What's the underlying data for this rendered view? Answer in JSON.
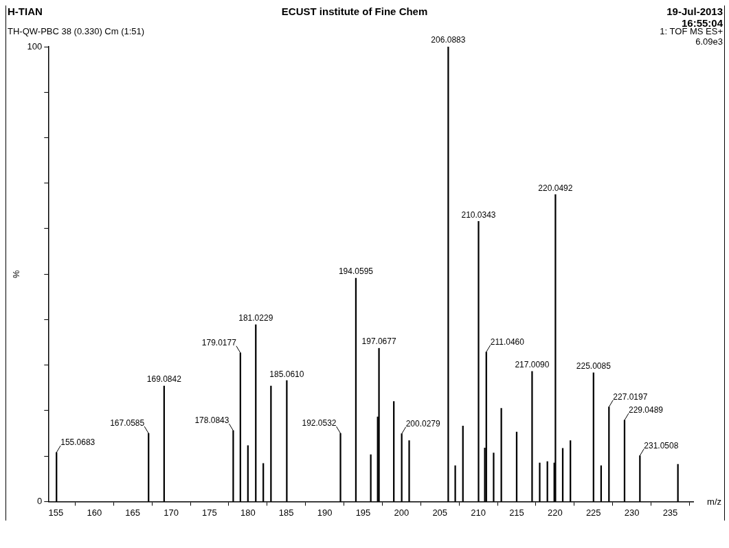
{
  "chart_data": {
    "type": "bar",
    "title": "ECUST institute of Fine Chem",
    "xlabel": "m/z",
    "ylabel": "%",
    "annotations": [
      "H-TIAN",
      "19-Jul-2013",
      "16:55:04",
      "TH-QW-PBC 38 (0.330) Cm (1:51)",
      "1: TOF MS ES+",
      "6.09e3",
      {
        "text": "155.0683",
        "x": 155.0683,
        "y": 10.8
      },
      {
        "text": "167.0585",
        "x": 167.0585,
        "y": 15
      },
      {
        "text": "169.0842",
        "x": 169.0842,
        "y": 25.4
      },
      {
        "text": "178.0843",
        "x": 178.0843,
        "y": 15.6
      },
      {
        "text": "179.0177",
        "x": 179.0177,
        "y": 32.7
      },
      {
        "text": "181.0229",
        "x": 181.0229,
        "y": 38.9
      },
      {
        "text": "185.0610",
        "x": 185.061,
        "y": 26.6
      },
      {
        "text": "192.0532",
        "x": 192.0532,
        "y": 15
      },
      {
        "text": "194.0595",
        "x": 194.0595,
        "y": 49.1
      },
      {
        "text": "197.0677",
        "x": 197.0677,
        "y": 33.7
      },
      {
        "text": "200.0279",
        "x": 200.0279,
        "y": 14.9
      },
      {
        "text": "206.0883",
        "x": 206.0883,
        "y": 100
      },
      {
        "text": "210.0343",
        "x": 210.0343,
        "y": 61.6
      },
      {
        "text": "211.0460",
        "x": 211.046,
        "y": 32.9
      },
      {
        "text": "217.0090",
        "x": 217.009,
        "y": 28.6
      },
      {
        "text": "220.0492",
        "x": 220.0492,
        "y": 67.5
      },
      {
        "text": "225.0085",
        "x": 225.0085,
        "y": 28.3
      },
      {
        "text": "227.0197",
        "x": 227.0197,
        "y": 20.8
      },
      {
        "text": "229.0489",
        "x": 229.0489,
        "y": 17.9
      },
      {
        "text": "231.0508",
        "x": 231.0508,
        "y": 10.1
      }
    ],
    "x": [
      155.0683,
      167.0585,
      169.0842,
      178.0843,
      179.0177,
      180,
      181.0229,
      182,
      183,
      185.061,
      192.0532,
      194.0595,
      196,
      196.9,
      197.0677,
      199,
      200.0279,
      201,
      206.0883,
      207,
      208,
      210.0343,
      210.85,
      211.046,
      212,
      213,
      215,
      217.009,
      218,
      219,
      219.9,
      220.0492,
      221,
      222,
      225.0085,
      226,
      227.0197,
      229.0489,
      231.0508,
      236
    ],
    "values": [
      10.8,
      15,
      25.4,
      15.6,
      32.7,
      12.3,
      38.9,
      8.4,
      25.4,
      26.6,
      15,
      49.1,
      10.3,
      18.6,
      33.7,
      22,
      14.9,
      13.4,
      100,
      7.9,
      16.6,
      61.6,
      11.8,
      32.9,
      10.7,
      20.5,
      15.3,
      28.6,
      8.5,
      8.8,
      8.5,
      67.5,
      11.7,
      13.4,
      28.3,
      7.9,
      20.8,
      17.9,
      10.1,
      8.2
    ],
    "color": "#000000",
    "xlim": [
      154,
      238
    ],
    "xticks": [
      155,
      160,
      165,
      170,
      175,
      180,
      185,
      190,
      195,
      200,
      205,
      210,
      215,
      220,
      225,
      230,
      235
    ],
    "ylim": [
      0,
      100
    ],
    "yticks": [
      0,
      {
        "value": 10,
        "label": null
      },
      {
        "value": 20,
        "label": null
      },
      {
        "value": 30,
        "label": null
      },
      {
        "value": 40,
        "label": null
      },
      {
        "value": 50,
        "label": null
      },
      {
        "value": 60,
        "label": null
      },
      {
        "value": 70,
        "label": null
      },
      {
        "value": 80,
        "label": null
      },
      {
        "value": 90,
        "label": null
      },
      100
    ],
    "legend": false
  }
}
